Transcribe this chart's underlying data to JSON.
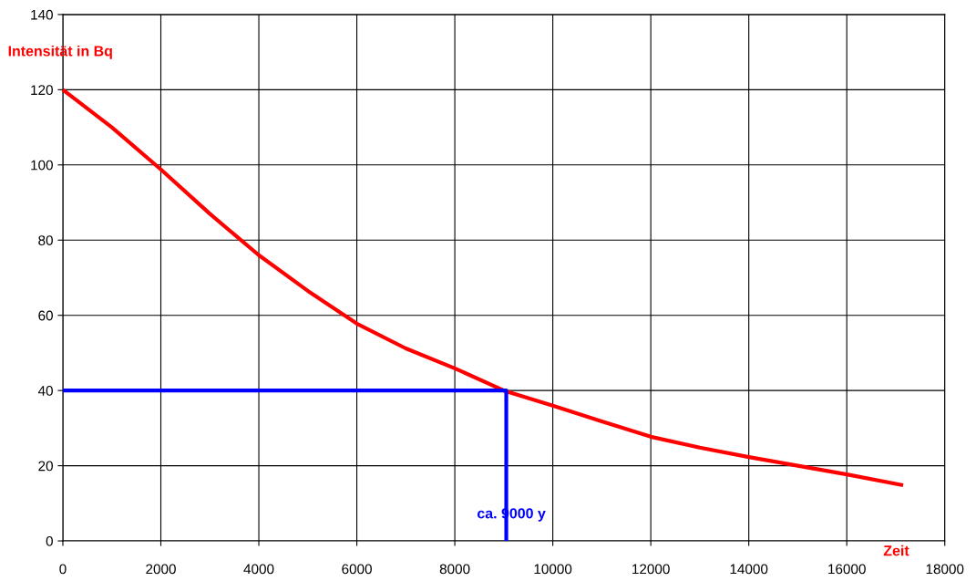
{
  "chart_data": {
    "type": "line",
    "xlabel": "Zeit",
    "ylabel": "Intensität in Bq",
    "xlim": [
      0,
      18000
    ],
    "xticks": [
      0,
      2000,
      4000,
      6000,
      8000,
      10000,
      12000,
      14000,
      16000,
      18000
    ],
    "ylim": [
      0,
      140
    ],
    "yticks": [
      0,
      20,
      40,
      60,
      80,
      100,
      120,
      140
    ],
    "grid": true,
    "marker": "none",
    "line_style": "solid",
    "series": [
      {
        "color": "#ff0000",
        "x": [
          0,
          1000,
          2000,
          3000,
          4000,
          5000,
          6000,
          7000,
          8000,
          9000,
          10000,
          11000,
          12000,
          13000,
          14000,
          15000,
          16000,
          17150
        ],
        "values": [
          120,
          110,
          98.8,
          87,
          76,
          66.5,
          57.8,
          51.2,
          45.9,
          40,
          36,
          31.8,
          27.7,
          24.8,
          22.3,
          20,
          17.7,
          14.8
        ]
      },
      {
        "color": "#0000ff",
        "x": [
          0,
          9050,
          9050
        ],
        "values": [
          40,
          40,
          0
        ]
      }
    ],
    "annotations": [
      {
        "text": "ca. 9000 y",
        "x": 9050,
        "y": 7
      }
    ]
  }
}
